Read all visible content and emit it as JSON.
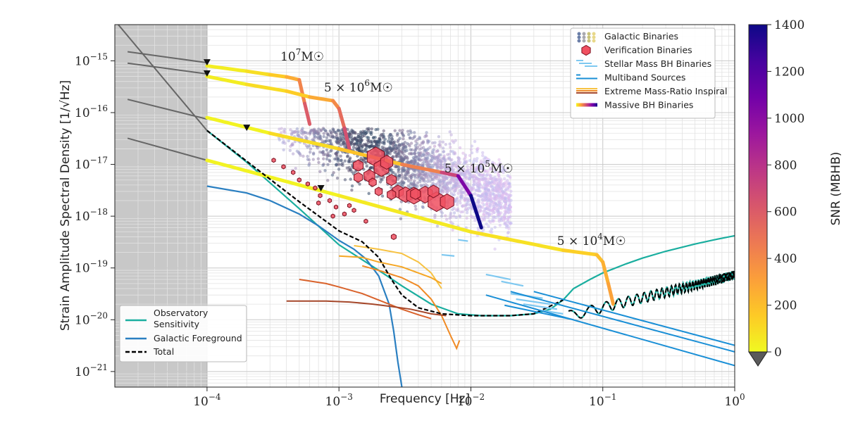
{
  "chart_data": {
    "type": "line",
    "xlabel": "Frequency [Hz]",
    "ylabel": "Strain Amplitude Spectral Density [1/√Hz]",
    "xscale": "log",
    "yscale": "log",
    "xlim": [
      2e-05,
      1.0
    ],
    "ylim": [
      5e-22,
      5e-15
    ],
    "grid": true,
    "x_ticks": [
      {
        "value": 0.0001,
        "base": "10",
        "exp": "−4"
      },
      {
        "value": 0.001,
        "base": "10",
        "exp": "−3"
      },
      {
        "value": 0.01,
        "base": "10",
        "exp": "−2"
      },
      {
        "value": 0.1,
        "base": "10",
        "exp": "−1"
      },
      {
        "value": 1,
        "base": "10",
        "exp": "0"
      }
    ],
    "y_ticks": [
      {
        "value": 1e-21,
        "base": "10",
        "exp": "−21"
      },
      {
        "value": 1e-20,
        "base": "10",
        "exp": "−20"
      },
      {
        "value": 1e-19,
        "base": "10",
        "exp": "−19"
      },
      {
        "value": 1e-18,
        "base": "10",
        "exp": "−18"
      },
      {
        "value": 1e-17,
        "base": "10",
        "exp": "−17"
      },
      {
        "value": 1e-16,
        "base": "10",
        "exp": "−16"
      },
      {
        "value": 1e-15,
        "base": "10",
        "exp": "−15"
      }
    ],
    "shaded_region": {
      "x": [
        2e-05,
        0.0001
      ],
      "color": "#c8c8c8"
    },
    "colorbar": {
      "label": "SNR (MBHB)",
      "range": [
        0,
        1400
      ],
      "ticks": [
        "0",
        "200",
        "400",
        "600",
        "800",
        "1000",
        "1200",
        "1400"
      ],
      "extend": "min",
      "colormap": [
        "#f0f921",
        "#fdca26",
        "#fb9f3a",
        "#ed7953",
        "#d8576b",
        "#bd3786",
        "#9c179e",
        "#7201a8",
        "#46039f",
        "#0d0887"
      ]
    },
    "legend_main": {
      "placement": "top-right",
      "entries": [
        {
          "label": "Galactic Binaries",
          "kind": "dots"
        },
        {
          "label": "Verification Binaries",
          "kind": "hexagon",
          "color": "#f05060"
        },
        {
          "label": "Stellar Mass BH Binaries",
          "kind": "dashes",
          "color": "#7ec8f0"
        },
        {
          "label": "Multiband Sources",
          "kind": "short-lines",
          "color": "#1a8fd6"
        },
        {
          "label": "Extreme Mass-Ratio Inspiral",
          "kind": "lines",
          "color": "#f0a030"
        },
        {
          "label": "Massive BH Binaries",
          "kind": "gradient"
        }
      ]
    },
    "legend_sensitivity": {
      "placement": "lower-left",
      "entries": [
        {
          "label": "Observatory",
          "label2": "Sensitivity",
          "color": "#1aae9f",
          "style": "solid"
        },
        {
          "label": "Galactic Foreground",
          "color": "#2a7fc1",
          "style": "solid"
        },
        {
          "label": "Total",
          "color": "#000000",
          "style": "dashed"
        }
      ]
    },
    "series": [
      {
        "name": "Observatory Sensitivity",
        "color": "#1aae9f",
        "x": [
          0.0001,
          0.0002,
          0.0005,
          0.001,
          0.002,
          0.003,
          0.005,
          0.008,
          0.012,
          0.02,
          0.03,
          0.04,
          0.05,
          0.06,
          0.08,
          0.1,
          0.15,
          0.2,
          0.3,
          0.5,
          0.7,
          1.0
        ],
        "y": [
          4.5e-17,
          1.1e-17,
          1.4e-18,
          2.8e-19,
          9e-20,
          4.5e-20,
          2e-20,
          1.3e-20,
          1.2e-20,
          1.2e-20,
          1.3e-20,
          1.6e-20,
          2.4e-20,
          4e-20,
          6e-20,
          8e-20,
          1.2e-19,
          1.55e-19,
          2.1e-19,
          2.9e-19,
          3.5e-19,
          4.2e-19
        ]
      },
      {
        "name": "Galactic Foreground",
        "color": "#2a7fc1",
        "x": [
          0.0001,
          0.0002,
          0.0003,
          0.0005,
          0.0007,
          0.001,
          0.0013,
          0.0016,
          0.002,
          0.0024,
          0.0026,
          0.0028,
          0.003
        ],
        "y": [
          3.8e-18,
          2.8e-18,
          2e-18,
          1.1e-18,
          6.5e-19,
          3.4e-19,
          2.3e-19,
          1.5e-19,
          7e-20,
          2e-20,
          6e-21,
          1.5e-21,
          5e-22
        ]
      },
      {
        "name": "Total",
        "color": "#000000",
        "dashed": true,
        "x": [
          0.0001,
          0.0002,
          0.0005,
          0.001,
          0.0015,
          0.002,
          0.0025,
          0.003,
          0.004,
          0.006,
          0.01,
          0.02,
          0.03,
          0.05,
          0.06,
          0.08,
          0.1,
          0.2,
          0.5,
          1.0
        ],
        "y": [
          4.5e-17,
          1.15e-17,
          1.9e-18,
          5.2e-19,
          3.2e-19,
          1.6e-19,
          6e-20,
          3e-20,
          1.7e-20,
          1.3e-20,
          1.2e-20,
          1.2e-20,
          1.3e-20,
          2.4e-20,
          4e-20,
          6e-20,
          8e-20,
          1.55e-19,
          2.9e-19,
          4.2e-19
        ]
      },
      {
        "name": "MBHB 10^7",
        "snr": [
          40,
          120,
          300,
          600
        ],
        "x": [
          0.0001,
          0.0002,
          0.0003,
          0.0004,
          0.0005,
          0.00055,
          0.0006
        ],
        "y": [
          8e-16,
          6.3e-16,
          5.4e-16,
          4.9e-16,
          4.3e-16,
          1.5e-16,
          6e-17
        ]
      },
      {
        "name": "MBHB 5x10^6",
        "snr": [
          40,
          150,
          400,
          650
        ],
        "x": [
          0.0001,
          0.0002,
          0.0004,
          0.0006,
          0.0009,
          0.001,
          0.0011,
          0.0012
        ],
        "y": [
          5e-16,
          3.5e-16,
          2.6e-16,
          2e-16,
          1.7e-16,
          1.2e-16,
          5e-17,
          2e-17
        ]
      },
      {
        "name": "MBHB 5x10^5",
        "snr": [
          20,
          180,
          700,
          1400
        ],
        "x": [
          0.0001,
          0.0003,
          0.001,
          0.003,
          0.006,
          0.008,
          0.01,
          0.012
        ],
        "y": [
          8e-17,
          4e-17,
          2e-17,
          1e-17,
          7e-18,
          6e-18,
          2.5e-18,
          6e-19
        ]
      },
      {
        "name": "MBHB 5x10^4",
        "snr": [
          20,
          80,
          200,
          300
        ],
        "x": [
          0.0001,
          0.001,
          0.01,
          0.05,
          0.09,
          0.1,
          0.11,
          0.12
        ],
        "y": [
          1.2e-17,
          2.5e-18,
          5e-19,
          2.2e-19,
          1.8e-19,
          1.3e-19,
          5e-20,
          2e-20
        ]
      },
      {
        "name": "EMRI 1",
        "color": "#f7c242",
        "x": [
          0.0013,
          0.002,
          0.003,
          0.004,
          0.005,
          0.006
        ],
        "y": [
          2.7e-19,
          2.3e-19,
          1.9e-19,
          1.3e-19,
          8e-20,
          4e-20
        ]
      },
      {
        "name": "EMRI 2",
        "color": "#f5a623",
        "x": [
          0.001,
          0.0015,
          0.002,
          0.003,
          0.004,
          0.005,
          0.006
        ],
        "y": [
          1.7e-19,
          1.6e-19,
          1.3e-19,
          1.05e-19,
          8e-20,
          6.5e-20,
          5e-20
        ]
      },
      {
        "name": "EMRI 3",
        "color": "#f08a24",
        "x": [
          0.0015,
          0.002,
          0.003,
          0.004,
          0.005,
          0.006,
          0.007,
          0.0078,
          0.0082
        ],
        "y": [
          1.1e-19,
          9e-20,
          6.5e-20,
          4.5e-20,
          2.5e-20,
          1.2e-20,
          5e-21,
          2.8e-21,
          4e-21
        ]
      },
      {
        "name": "EMRI 4",
        "color": "#d9622b",
        "x": [
          0.0005,
          0.0008,
          0.001,
          0.0015,
          0.002,
          0.003,
          0.004,
          0.005
        ],
        "y": [
          6e-20,
          5e-20,
          4.3e-20,
          3.2e-20,
          2.4e-20,
          1.6e-20,
          1.25e-20,
          1.05e-20
        ]
      },
      {
        "name": "EMRI 5",
        "color": "#a5472a",
        "x": [
          0.0004,
          0.0008,
          0.0012,
          0.0018,
          0.0025,
          0.0035,
          0.005,
          0.0065
        ],
        "y": [
          2.3e-20,
          2.3e-20,
          2.2e-20,
          2e-20,
          1.8e-20,
          1.6e-20,
          1.3e-20,
          1.2e-20
        ]
      }
    ],
    "stellar_bh_dashes": [
      {
        "x1": 0.013,
        "y1": 7.5e-20,
        "x2": 0.02,
        "y2": 6e-20
      },
      {
        "x1": 0.017,
        "y1": 5.5e-20,
        "x2": 0.025,
        "y2": 4.5e-20
      },
      {
        "x1": 0.02,
        "y1": 3.2e-20,
        "x2": 0.035,
        "y2": 2.6e-20
      },
      {
        "x1": 0.022,
        "y1": 2.5e-20,
        "x2": 0.04,
        "y2": 2e-20
      },
      {
        "x1": 0.025,
        "y1": 2e-20,
        "x2": 0.045,
        "y2": 1.6e-20
      },
      {
        "x1": 0.035,
        "y1": 1.5e-20,
        "x2": 0.05,
        "y2": 1.3e-20
      },
      {
        "x1": 0.008,
        "y1": 3.5e-19,
        "x2": 0.0095,
        "y2": 3.3e-19
      },
      {
        "x1": 0.006,
        "y1": 1.8e-19,
        "x2": 0.0075,
        "y2": 1.7e-19
      }
    ],
    "multiband_lines": [
      {
        "x1": 0.013,
        "y1": 3e-20,
        "x2": 1.0,
        "y2": 1.3e-21
      },
      {
        "x1": 0.02,
        "y1": 3.5e-20,
        "x2": 1.0,
        "y2": 2.4e-21
      },
      {
        "x1": 0.03,
        "y1": 3.5e-20,
        "x2": 1.0,
        "y2": 3.2e-21
      },
      {
        "x1": 0.018,
        "y1": 1.9e-20,
        "x2": 0.06,
        "y2": 1e-20
      }
    ],
    "start_markers": [
      {
        "x": 0.0001,
        "y": 9.2e-16
      },
      {
        "x": 0.0001,
        "y": 5.6e-16
      },
      {
        "x": 0.0002,
        "y": 5e-17
      },
      {
        "x": 0.00073,
        "y": 3.4e-18
      }
    ],
    "verification_binaries": [
      {
        "x": 0.0019,
        "y": 1.4e-17,
        "s": 14
      },
      {
        "x": 0.0021,
        "y": 8.5e-18,
        "s": 12
      },
      {
        "x": 0.0023,
        "y": 1.1e-17,
        "s": 10
      },
      {
        "x": 0.0014,
        "y": 9.5e-18,
        "s": 8
      },
      {
        "x": 0.0017,
        "y": 6e-18,
        "s": 9
      },
      {
        "x": 0.0025,
        "y": 5e-18,
        "s": 8
      },
      {
        "x": 0.0014,
        "y": 5.6e-18,
        "s": 7
      },
      {
        "x": 0.0028,
        "y": 3e-18,
        "s": 9
      },
      {
        "x": 0.0032,
        "y": 2.6e-18,
        "s": 11
      },
      {
        "x": 0.0037,
        "y": 2.5e-18,
        "s": 12
      },
      {
        "x": 0.0045,
        "y": 2.6e-18,
        "s": 12
      },
      {
        "x": 0.0055,
        "y": 1.9e-18,
        "s": 14
      },
      {
        "x": 0.0066,
        "y": 1.9e-18,
        "s": 11
      },
      {
        "x": 0.0052,
        "y": 3e-18,
        "s": 9
      },
      {
        "x": 0.0038,
        "y": 2.7e-18,
        "s": 8
      },
      {
        "x": 0.0025,
        "y": 2.6e-18,
        "s": 7
      },
      {
        "x": 0.002,
        "y": 3e-18,
        "s": 6
      },
      {
        "x": 0.0018,
        "y": 4.5e-18,
        "s": 6
      },
      {
        "x": 0.00032,
        "y": 1.2e-17,
        "s": 3
      },
      {
        "x": 0.00038,
        "y": 9e-18,
        "s": 3
      },
      {
        "x": 0.00045,
        "y": 7e-18,
        "s": 3
      },
      {
        "x": 0.0005,
        "y": 5e-18,
        "s": 3
      },
      {
        "x": 0.00058,
        "y": 4.2e-18,
        "s": 3
      },
      {
        "x": 0.00066,
        "y": 3.5e-18,
        "s": 3
      },
      {
        "x": 0.00072,
        "y": 2.5e-18,
        "s": 3
      },
      {
        "x": 0.00085,
        "y": 2e-18,
        "s": 3
      },
      {
        "x": 0.00095,
        "y": 1.5e-18,
        "s": 3
      },
      {
        "x": 0.0011,
        "y": 1.1e-18,
        "s": 3
      },
      {
        "x": 0.0012,
        "y": 1.6e-18,
        "s": 3
      },
      {
        "x": 0.0009,
        "y": 1e-18,
        "s": 3
      },
      {
        "x": 0.0016,
        "y": 8e-19,
        "s": 3
      },
      {
        "x": 0.0026,
        "y": 4e-19,
        "s": 4
      },
      {
        "x": 0.0007,
        "y": 1.8e-18,
        "s": 3
      },
      {
        "x": 0.0013,
        "y": 1.3e-18,
        "s": 3
      }
    ],
    "galactic_binaries": {
      "x_range": [
        0.00035,
        0.025
      ],
      "y_range": [
        1.8e-19,
        5e-17
      ],
      "count": 2600
    },
    "annotations": [
      {
        "x": 0.00036,
        "y": 1.02e-15,
        "mass": "10",
        "exp": "7"
      },
      {
        "x": 0.00077,
        "y": 2.55e-16,
        "pre": "5 × ",
        "mass": "10",
        "exp": "6"
      },
      {
        "x": 0.0063,
        "y": 7e-18,
        "pre": "5 × ",
        "mass": "10",
        "exp": "5"
      },
      {
        "x": 0.045,
        "y": 2.8e-19,
        "pre": "5 × ",
        "mass": "10",
        "exp": "4"
      }
    ]
  }
}
